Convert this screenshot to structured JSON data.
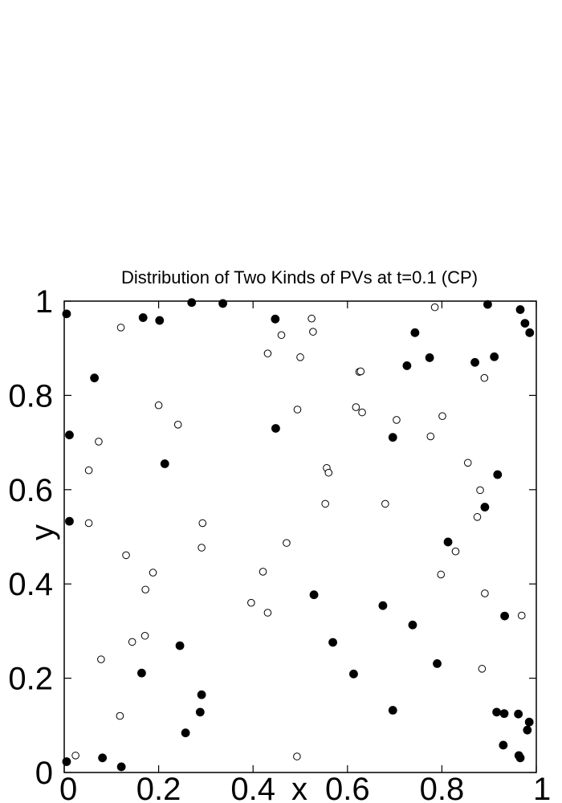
{
  "chart_data": {
    "type": "scatter",
    "title": "Distribution of Two Kinds of PVs at t=0.1 (CP)",
    "xlabel": "x",
    "ylabel": "y",
    "xlim": [
      0,
      1
    ],
    "ylim": [
      0,
      1
    ],
    "xticks": [
      "0",
      "0.2",
      "0.4",
      "0.6",
      "0.8",
      "1"
    ],
    "yticks": [
      "0",
      "0.2",
      "0.4",
      "0.6",
      "0.8",
      "1"
    ],
    "grid": false,
    "legend": "none",
    "series": [
      {
        "marker": "filled-circle",
        "color": "#000000",
        "points": [
          [
            0.005,
            0.973
          ],
          [
            0.167,
            0.965
          ],
          [
            0.202,
            0.959
          ],
          [
            0.27,
            0.997
          ],
          [
            0.336,
            0.995
          ],
          [
            0.064,
            0.837
          ],
          [
            0.011,
            0.716
          ],
          [
            0.011,
            0.533
          ],
          [
            0.213,
            0.655
          ],
          [
            0.447,
            0.962
          ],
          [
            0.448,
            0.73
          ],
          [
            0.529,
            0.377
          ],
          [
            0.569,
            0.276
          ],
          [
            0.613,
            0.209
          ],
          [
            0.675,
            0.354
          ],
          [
            0.696,
            0.711
          ],
          [
            0.696,
            0.132
          ],
          [
            0.738,
            0.313
          ],
          [
            0.726,
            0.863
          ],
          [
            0.743,
            0.933
          ],
          [
            0.774,
            0.88
          ],
          [
            0.79,
            0.231
          ],
          [
            0.813,
            0.489
          ],
          [
            0.87,
            0.87
          ],
          [
            0.891,
            0.563
          ],
          [
            0.897,
            0.993
          ],
          [
            0.911,
            0.882
          ],
          [
            0.918,
            0.632
          ],
          [
            0.933,
            0.332
          ],
          [
            0.966,
            0.982
          ],
          [
            0.976,
            0.953
          ],
          [
            0.986,
            0.933
          ],
          [
            0.005,
            0.023
          ],
          [
            0.081,
            0.031
          ],
          [
            0.121,
            0.012
          ],
          [
            0.164,
            0.211
          ],
          [
            0.245,
            0.269
          ],
          [
            0.257,
            0.084
          ],
          [
            0.291,
            0.165
          ],
          [
            0.288,
            0.128
          ],
          [
            0.916,
            0.128
          ],
          [
            0.932,
            0.125
          ],
          [
            0.93,
            0.058
          ],
          [
            0.962,
            0.124
          ],
          [
            0.963,
            0.036
          ],
          [
            0.966,
            0.031
          ],
          [
            0.981,
            0.09
          ],
          [
            0.985,
            0.107
          ]
        ]
      },
      {
        "marker": "open-circle",
        "color": "#000000",
        "points": [
          [
            0.12,
            0.944
          ],
          [
            0.2,
            0.779
          ],
          [
            0.241,
            0.738
          ],
          [
            0.073,
            0.702
          ],
          [
            0.052,
            0.641
          ],
          [
            0.052,
            0.529
          ],
          [
            0.131,
            0.461
          ],
          [
            0.188,
            0.424
          ],
          [
            0.172,
            0.388
          ],
          [
            0.293,
            0.529
          ],
          [
            0.291,
            0.477
          ],
          [
            0.144,
            0.277
          ],
          [
            0.171,
            0.29
          ],
          [
            0.078,
            0.24
          ],
          [
            0.118,
            0.12
          ],
          [
            0.024,
            0.036
          ],
          [
            0.396,
            0.36
          ],
          [
            0.421,
            0.426
          ],
          [
            0.431,
            0.339
          ],
          [
            0.471,
            0.487
          ],
          [
            0.493,
            0.034
          ],
          [
            0.431,
            0.889
          ],
          [
            0.46,
            0.928
          ],
          [
            0.494,
            0.77
          ],
          [
            0.5,
            0.881
          ],
          [
            0.524,
            0.963
          ],
          [
            0.527,
            0.935
          ],
          [
            0.553,
            0.57
          ],
          [
            0.556,
            0.646
          ],
          [
            0.56,
            0.636
          ],
          [
            0.618,
            0.775
          ],
          [
            0.625,
            0.85
          ],
          [
            0.628,
            0.851
          ],
          [
            0.631,
            0.764
          ],
          [
            0.68,
            0.57
          ],
          [
            0.704,
            0.748
          ],
          [
            0.776,
            0.713
          ],
          [
            0.785,
            0.987
          ],
          [
            0.798,
            0.42
          ],
          [
            0.801,
            0.756
          ],
          [
            0.829,
            0.469
          ],
          [
            0.855,
            0.657
          ],
          [
            0.875,
            0.542
          ],
          [
            0.881,
            0.599
          ],
          [
            0.89,
            0.837
          ],
          [
            0.891,
            0.38
          ],
          [
            0.885,
            0.22
          ],
          [
            0.969,
            0.333
          ]
        ]
      }
    ]
  }
}
